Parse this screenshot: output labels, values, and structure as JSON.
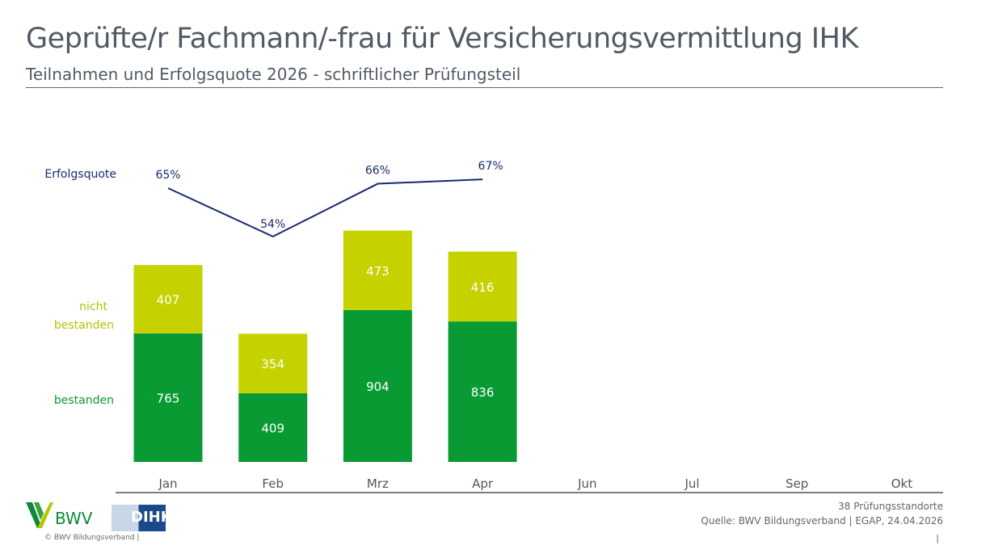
{
  "header": {
    "title": "Geprüfte/r Fachmann/-frau für Versicherungsvermittlung IHK",
    "subtitle": "Teilnahmen und Erfolgsquote 2026 - schriftlicher Prüfungsteil"
  },
  "chart_data": {
    "type": "bar",
    "stacked": true,
    "categories": [
      "Jan",
      "Feb",
      "Mrz",
      "Apr",
      "Jun",
      "Jul",
      "Sep",
      "Okt"
    ],
    "series": [
      {
        "name": "bestanden",
        "values": [
          765,
          409,
          904,
          836,
          null,
          null,
          null,
          null
        ],
        "color": "#0a9a34"
      },
      {
        "name": "nicht bestanden",
        "values": [
          407,
          354,
          473,
          416,
          null,
          null,
          null,
          null
        ],
        "color": "#c5d200"
      }
    ],
    "line": {
      "name": "Erfolgsquote",
      "values": [
        65,
        54,
        66,
        67,
        null,
        null,
        null,
        null
      ],
      "labels": [
        "65%",
        "54%",
        "66%",
        "67%"
      ],
      "color": "#1a2a6c"
    },
    "legend_placement": "left",
    "grid": false
  },
  "footer": {
    "locations": "38 Prüfungsstandorte",
    "source": "Quelle: BWV Bildungsverband | EGAP, 24.04.2026",
    "copyright": "©  BWV Bildungsverband  |",
    "page": "|",
    "logo_bwv": "BWV",
    "logo_dihk": "DIHK"
  }
}
